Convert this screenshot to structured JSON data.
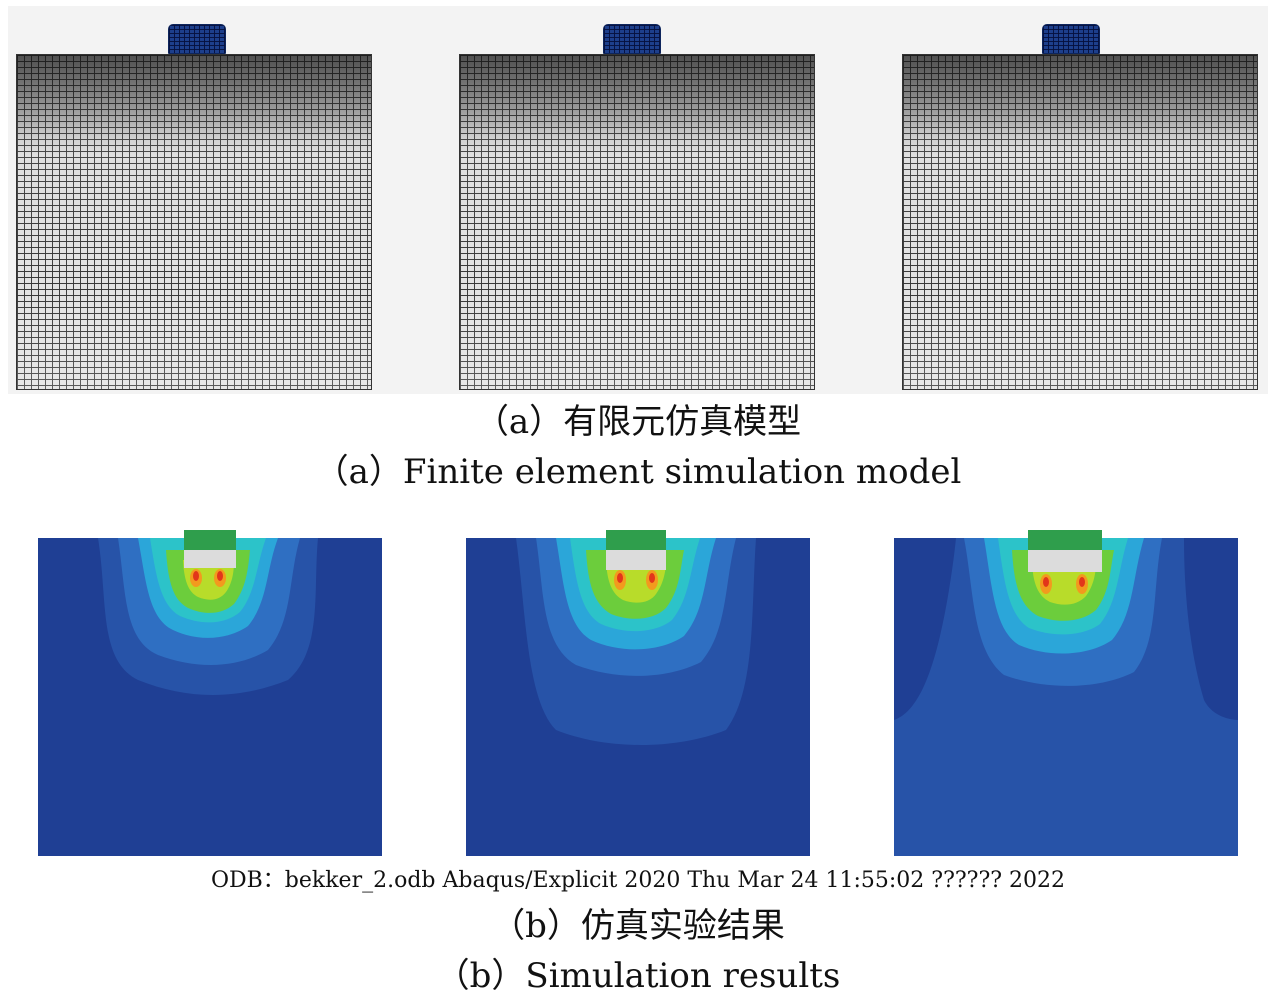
{
  "section_a": {
    "caption_cn": "（a）有限元仿真模型",
    "caption_en": "（a）Finite element simulation model",
    "panels": [
      {
        "id": "mesh-1"
      },
      {
        "id": "mesh-2"
      },
      {
        "id": "mesh-3"
      }
    ],
    "colors": {
      "mesh_background": "#f3f3f3",
      "wheel": "#1d3f8c"
    }
  },
  "section_b": {
    "panels": [
      {
        "id": "result-1"
      },
      {
        "id": "result-2"
      },
      {
        "id": "result-3"
      }
    ],
    "odb_info": "ODB：bekker_2.odb   Abaqus/Explicit 2020 Thu Mar 24 11:55:02  ?????? 2022",
    "caption_cn": "（b）仿真实验结果",
    "caption_en": "（b）Simulation results",
    "colors": {
      "deep_blue": "#1f3f94",
      "mid_blue": "#2753a8",
      "blue": "#2f6fc2",
      "light_blue": "#2ba6d9",
      "cyan": "#2cc3c9",
      "teal": "#3dc79a",
      "green": "#6ccd3c",
      "yellow_green": "#b8dc2a",
      "yellow": "#f0e21f",
      "orange": "#f29a1e",
      "red": "#e2361a",
      "wheel_gray": "#dcdcdc",
      "wheel_green": "#2f9e4c"
    }
  }
}
